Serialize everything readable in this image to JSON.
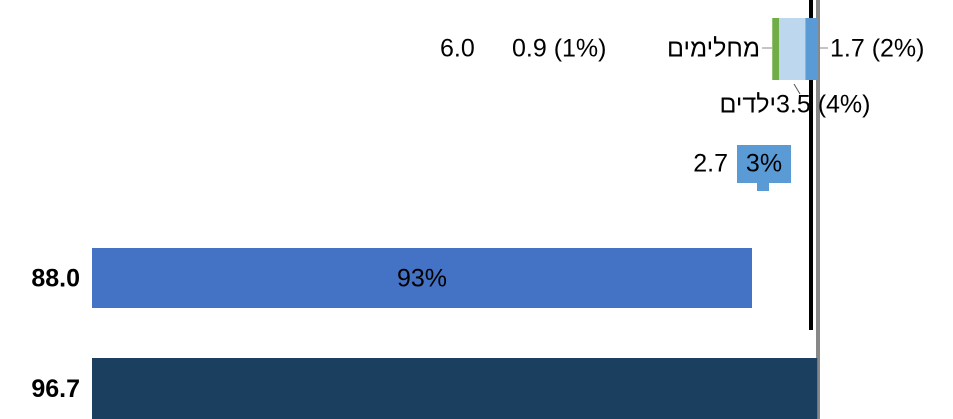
{
  "chart_data": {
    "type": "bar",
    "bars": [
      {
        "value": 96.7,
        "value_label": "96.7",
        "color": "#1b3f5f"
      },
      {
        "value": 88.0,
        "value_label": "88.0",
        "share": 93,
        "share_label": "93%",
        "color": "#4472c4"
      },
      {
        "value": 2.7,
        "value_label": "2.7",
        "share": 3,
        "share_label": "3%",
        "color": "#5b9bd5"
      }
    ],
    "stack": {
      "total": 6.0,
      "total_label": "6.0",
      "segments": [
        {
          "name": "מחלימים",
          "value": 0.9,
          "value_label": "0.9 (1%)",
          "color": "#70ad47"
        },
        {
          "name": "ילדים",
          "value": 3.5,
          "value_label": "3.5 (4%)",
          "color": "#bdd7ee"
        },
        {
          "value": 1.7,
          "value_label": "1.7 (2%)",
          "color": "#5b9bd5"
        }
      ]
    }
  }
}
